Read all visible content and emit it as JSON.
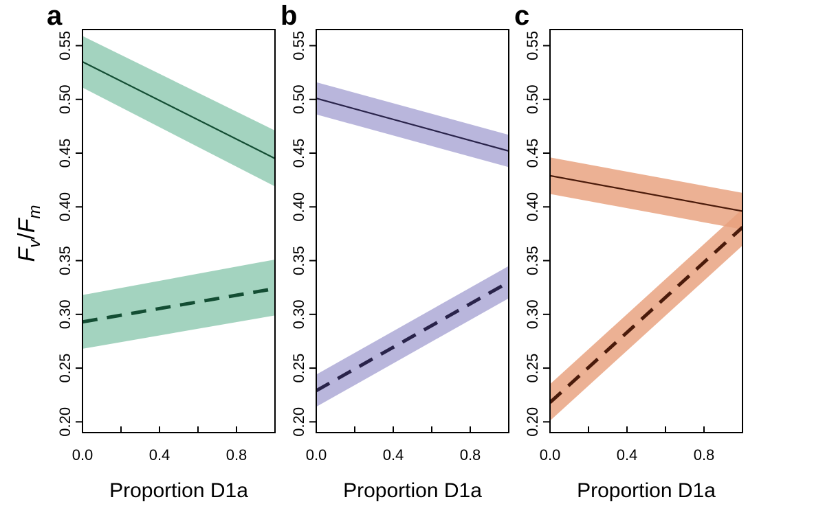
{
  "figure": {
    "ylabel_main": "F",
    "ylabel_sub1": "v",
    "ylabel_slash": "/",
    "ylabel_main2": "F",
    "ylabel_sub2": "m"
  },
  "chart_data": [
    {
      "type": "line",
      "panel": "a",
      "xlabel": "Proportion D1a",
      "xlim": [
        0,
        1
      ],
      "ylim": [
        0.19,
        0.565
      ],
      "xticks": [
        0.0,
        0.4,
        0.8
      ],
      "xtick_labels": [
        "0.0",
        "0.4",
        "0.8"
      ],
      "yticks": [
        0.2,
        0.25,
        0.3,
        0.35,
        0.4,
        0.45,
        0.5,
        0.55
      ],
      "ytick_labels": [
        "0.20",
        "0.25",
        "0.30",
        "0.35",
        "0.40",
        "0.45",
        "0.50",
        "0.55"
      ],
      "grid": false,
      "band_color": "#8fc9b1",
      "line_color": "#134d33",
      "series": [
        {
          "style": "solid",
          "x": [
            0,
            1
          ],
          "y": [
            0.535,
            0.445
          ],
          "lower": [
            0.511,
            0.419
          ],
          "upper": [
            0.559,
            0.471
          ]
        },
        {
          "style": "dashed",
          "x": [
            0,
            1
          ],
          "y": [
            0.293,
            0.324
          ],
          "lower": [
            0.268,
            0.299
          ],
          "upper": [
            0.318,
            0.351
          ]
        }
      ]
    },
    {
      "type": "line",
      "panel": "b",
      "xlabel": "Proportion D1a",
      "xlim": [
        0,
        1
      ],
      "ylim": [
        0.19,
        0.565
      ],
      "xticks": [
        0.0,
        0.4,
        0.8
      ],
      "xtick_labels": [
        "0.0",
        "0.4",
        "0.8"
      ],
      "yticks": [
        0.2,
        0.25,
        0.3,
        0.35,
        0.4,
        0.45,
        0.5,
        0.55
      ],
      "ytick_labels": [
        "0.20",
        "0.25",
        "0.30",
        "0.35",
        "0.40",
        "0.45",
        "0.50",
        "0.55"
      ],
      "grid": false,
      "band_color": "#aaa6d4",
      "line_color": "#29234a",
      "series": [
        {
          "style": "solid",
          "x": [
            0,
            1
          ],
          "y": [
            0.501,
            0.452
          ],
          "lower": [
            0.486,
            0.437
          ],
          "upper": [
            0.516,
            0.467
          ]
        },
        {
          "style": "dashed",
          "x": [
            0,
            1
          ],
          "y": [
            0.229,
            0.33
          ],
          "lower": [
            0.214,
            0.315
          ],
          "upper": [
            0.244,
            0.345
          ]
        }
      ]
    },
    {
      "type": "line",
      "panel": "c",
      "xlabel": "Proportion D1a",
      "xlim": [
        0,
        1
      ],
      "ylim": [
        0.19,
        0.565
      ],
      "xticks": [
        0.0,
        0.4,
        0.8
      ],
      "xtick_labels": [
        "0.0",
        "0.4",
        "0.8"
      ],
      "yticks": [
        0.2,
        0.25,
        0.3,
        0.35,
        0.4,
        0.45,
        0.5,
        0.55
      ],
      "ytick_labels": [
        "0.20",
        "0.25",
        "0.30",
        "0.35",
        "0.40",
        "0.45",
        "0.50",
        "0.55"
      ],
      "grid": false,
      "band_color": "#e8a07c",
      "line_color": "#4a1a0a",
      "series": [
        {
          "style": "solid",
          "x": [
            0,
            1
          ],
          "y": [
            0.429,
            0.396
          ],
          "lower": [
            0.412,
            0.379
          ],
          "upper": [
            0.446,
            0.413
          ]
        },
        {
          "style": "dashed",
          "x": [
            0,
            1
          ],
          "y": [
            0.218,
            0.381
          ],
          "lower": [
            0.201,
            0.364
          ],
          "upper": [
            0.235,
            0.398
          ]
        }
      ]
    }
  ]
}
